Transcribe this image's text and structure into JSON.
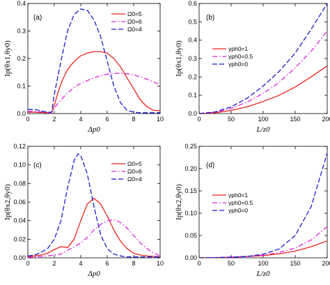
{
  "chart_data": [
    {
      "panel": "(a)",
      "type": "line",
      "xlabel": "Δp0",
      "ylabel": "Ip(θx1,θy0)",
      "xlim": [
        0,
        10
      ],
      "ylim": [
        0,
        0.4
      ],
      "xticks": [
        "0",
        "2",
        "4",
        "6",
        "8",
        "10"
      ],
      "yticks": [
        "0.0",
        "0.1",
        "0.2",
        "0.3",
        "0.4"
      ],
      "legend_position": "top-right",
      "series": [
        {
          "name": "Ω0=5",
          "color": "#e8241c",
          "dash": "solid",
          "x": [
            0,
            0.5,
            1,
            1.5,
            1.8,
            2,
            2.3,
            2.6,
            3,
            3.5,
            4,
            4.5,
            5,
            5.5,
            6,
            6.5,
            7,
            7.5,
            8,
            8.5,
            9,
            9.5,
            10
          ],
          "y": [
            0.005,
            0.005,
            0.004,
            0.003,
            0.004,
            0.03,
            0.08,
            0.12,
            0.16,
            0.19,
            0.21,
            0.22,
            0.225,
            0.225,
            0.22,
            0.2,
            0.17,
            0.13,
            0.09,
            0.05,
            0.025,
            0.012,
            0.01
          ]
        },
        {
          "name": "Ω0=6",
          "color": "#e020e0",
          "dash": "dashdot",
          "x": [
            0,
            0.5,
            1,
            1.5,
            1.8,
            2,
            2.5,
            3,
            3.5,
            4,
            4.5,
            5,
            5.5,
            6,
            6.5,
            7,
            7.5,
            8,
            8.5,
            9,
            9.5,
            10
          ],
          "y": [
            0.008,
            0.008,
            0.006,
            0.004,
            0.004,
            0.02,
            0.05,
            0.075,
            0.095,
            0.11,
            0.12,
            0.13,
            0.138,
            0.143,
            0.146,
            0.147,
            0.145,
            0.14,
            0.134,
            0.125,
            0.115,
            0.105
          ]
        },
        {
          "name": "Ω0=4",
          "color": "#1a1ad0",
          "dash": "dashed",
          "x": [
            0,
            0.5,
            1,
            1.5,
            1.8,
            2,
            2.5,
            3,
            3.5,
            4,
            4.5,
            5,
            5.5,
            6,
            6.5,
            7,
            7.5,
            8,
            8.5,
            9,
            9.5,
            10
          ],
          "y": [
            0.015,
            0.015,
            0.01,
            0.005,
            0.005,
            0.07,
            0.19,
            0.3,
            0.36,
            0.38,
            0.375,
            0.34,
            0.28,
            0.19,
            0.1,
            0.04,
            0.012,
            0.005,
            0.003,
            0.003,
            0.003,
            0.003
          ]
        }
      ]
    },
    {
      "panel": "(b)",
      "type": "line",
      "xlabel": "L/z0",
      "ylabel": "Ip(θx1,θy0)",
      "xlim": [
        0,
        200
      ],
      "ylim": [
        0,
        0.6
      ],
      "xticks": [
        "0",
        "50",
        "100",
        "150",
        "200"
      ],
      "yticks": [
        "0.0",
        "0.1",
        "0.2",
        "0.3",
        "0.4",
        "0.5",
        "0.6"
      ],
      "legend_position": "center-left",
      "series": [
        {
          "name": "γph0=1",
          "color": "#e8241c",
          "dash": "solid",
          "x": [
            0,
            25,
            50,
            75,
            100,
            125,
            150,
            175,
            200
          ],
          "y": [
            0,
            0.004,
            0.017,
            0.037,
            0.066,
            0.1,
            0.145,
            0.2,
            0.26
          ]
        },
        {
          "name": "γph0=0.5",
          "color": "#e020e0",
          "dash": "dashdot",
          "x": [
            0,
            25,
            50,
            75,
            100,
            125,
            150,
            175,
            200
          ],
          "y": [
            0,
            0.007,
            0.028,
            0.063,
            0.11,
            0.17,
            0.25,
            0.34,
            0.45
          ]
        },
        {
          "name": "γph0=0",
          "color": "#1a1ad0",
          "dash": "dashed",
          "x": [
            0,
            25,
            50,
            75,
            100,
            125,
            150,
            175,
            200
          ],
          "y": [
            0,
            0.009,
            0.037,
            0.084,
            0.15,
            0.23,
            0.33,
            0.46,
            0.6
          ]
        }
      ]
    },
    {
      "panel": "(c)",
      "type": "line",
      "xlabel": "Δp0",
      "ylabel": "Ip(θx2,θy0)",
      "xlim": [
        0,
        10
      ],
      "ylim": [
        0,
        0.12
      ],
      "xticks": [
        "0",
        "2",
        "4",
        "6",
        "8",
        "10"
      ],
      "yticks": [
        "0.00",
        "0.02",
        "0.04",
        "0.06",
        "0.08",
        "0.10",
        "0.12"
      ],
      "legend_position": "top-right",
      "series": [
        {
          "name": "Ω0=5",
          "color": "#e8241c",
          "dash": "solid",
          "x": [
            0,
            0.5,
            1,
            1.5,
            2,
            2.5,
            3,
            3.5,
            4,
            4.5,
            5,
            5.5,
            6,
            6.5,
            7,
            7.5,
            8,
            8.5,
            9,
            9.5,
            10
          ],
          "y": [
            0.001,
            0.002,
            0.003,
            0.005,
            0.009,
            0.012,
            0.011,
            0.02,
            0.04,
            0.058,
            0.064,
            0.058,
            0.045,
            0.03,
            0.018,
            0.01,
            0.005,
            0.003,
            0.002,
            0.0015,
            0.001
          ]
        },
        {
          "name": "Ω0=6",
          "color": "#e020e0",
          "dash": "dashdot",
          "x": [
            0,
            0.5,
            1,
            1.5,
            2,
            2.5,
            3,
            3.5,
            4,
            4.5,
            5,
            5.5,
            6,
            6.5,
            7,
            7.5,
            8,
            8.5,
            9,
            9.5,
            10
          ],
          "y": [
            0.0005,
            0.001,
            0.0015,
            0.002,
            0.003,
            0.004,
            0.008,
            0.012,
            0.016,
            0.022,
            0.03,
            0.036,
            0.04,
            0.041,
            0.038,
            0.032,
            0.024,
            0.016,
            0.01,
            0.005,
            0.002
          ]
        },
        {
          "name": "Ω0=4",
          "color": "#1a1ad0",
          "dash": "dashed",
          "x": [
            0,
            0.5,
            1,
            1.5,
            2,
            2.5,
            3,
            3.5,
            3.8,
            4,
            4.5,
            5,
            5.5,
            6,
            6.5,
            7,
            7.5,
            8,
            9,
            10
          ],
          "y": [
            0.002,
            0.003,
            0.006,
            0.01,
            0.02,
            0.04,
            0.075,
            0.105,
            0.112,
            0.11,
            0.09,
            0.055,
            0.025,
            0.01,
            0.004,
            0.002,
            0.001,
            0.001,
            0.001,
            0.001
          ]
        }
      ]
    },
    {
      "panel": "(d)",
      "type": "line",
      "xlabel": "L/z0",
      "ylabel": "Ip(θx2,θy0)",
      "xlim": [
        0,
        200
      ],
      "ylim": [
        0,
        0.25
      ],
      "xticks": [
        "0",
        "50",
        "100",
        "150",
        "200"
      ],
      "yticks": [
        "0.00",
        "0.05",
        "0.10",
        "0.15",
        "0.20",
        "0.25"
      ],
      "legend_position": "center-left",
      "series": [
        {
          "name": "γph0=1",
          "color": "#e8241c",
          "dash": "solid",
          "x": [
            0,
            25,
            50,
            75,
            100,
            125,
            150,
            175,
            200
          ],
          "y": [
            0,
            0.0005,
            0.0015,
            0.003,
            0.005,
            0.009,
            0.015,
            0.025,
            0.038
          ]
        },
        {
          "name": "γph0=0.5",
          "color": "#e020e0",
          "dash": "dashdot",
          "x": [
            0,
            25,
            50,
            75,
            100,
            125,
            150,
            175,
            200
          ],
          "y": [
            0,
            0.0005,
            0.0015,
            0.003,
            0.006,
            0.012,
            0.022,
            0.04,
            0.07
          ]
        },
        {
          "name": "γph0=0",
          "color": "#1a1ad0",
          "dash": "dashed",
          "x": [
            0,
            25,
            50,
            75,
            100,
            125,
            150,
            175,
            200
          ],
          "y": [
            0,
            0.0005,
            0.0015,
            0.003,
            0.008,
            0.02,
            0.05,
            0.115,
            0.235
          ]
        }
      ]
    }
  ]
}
